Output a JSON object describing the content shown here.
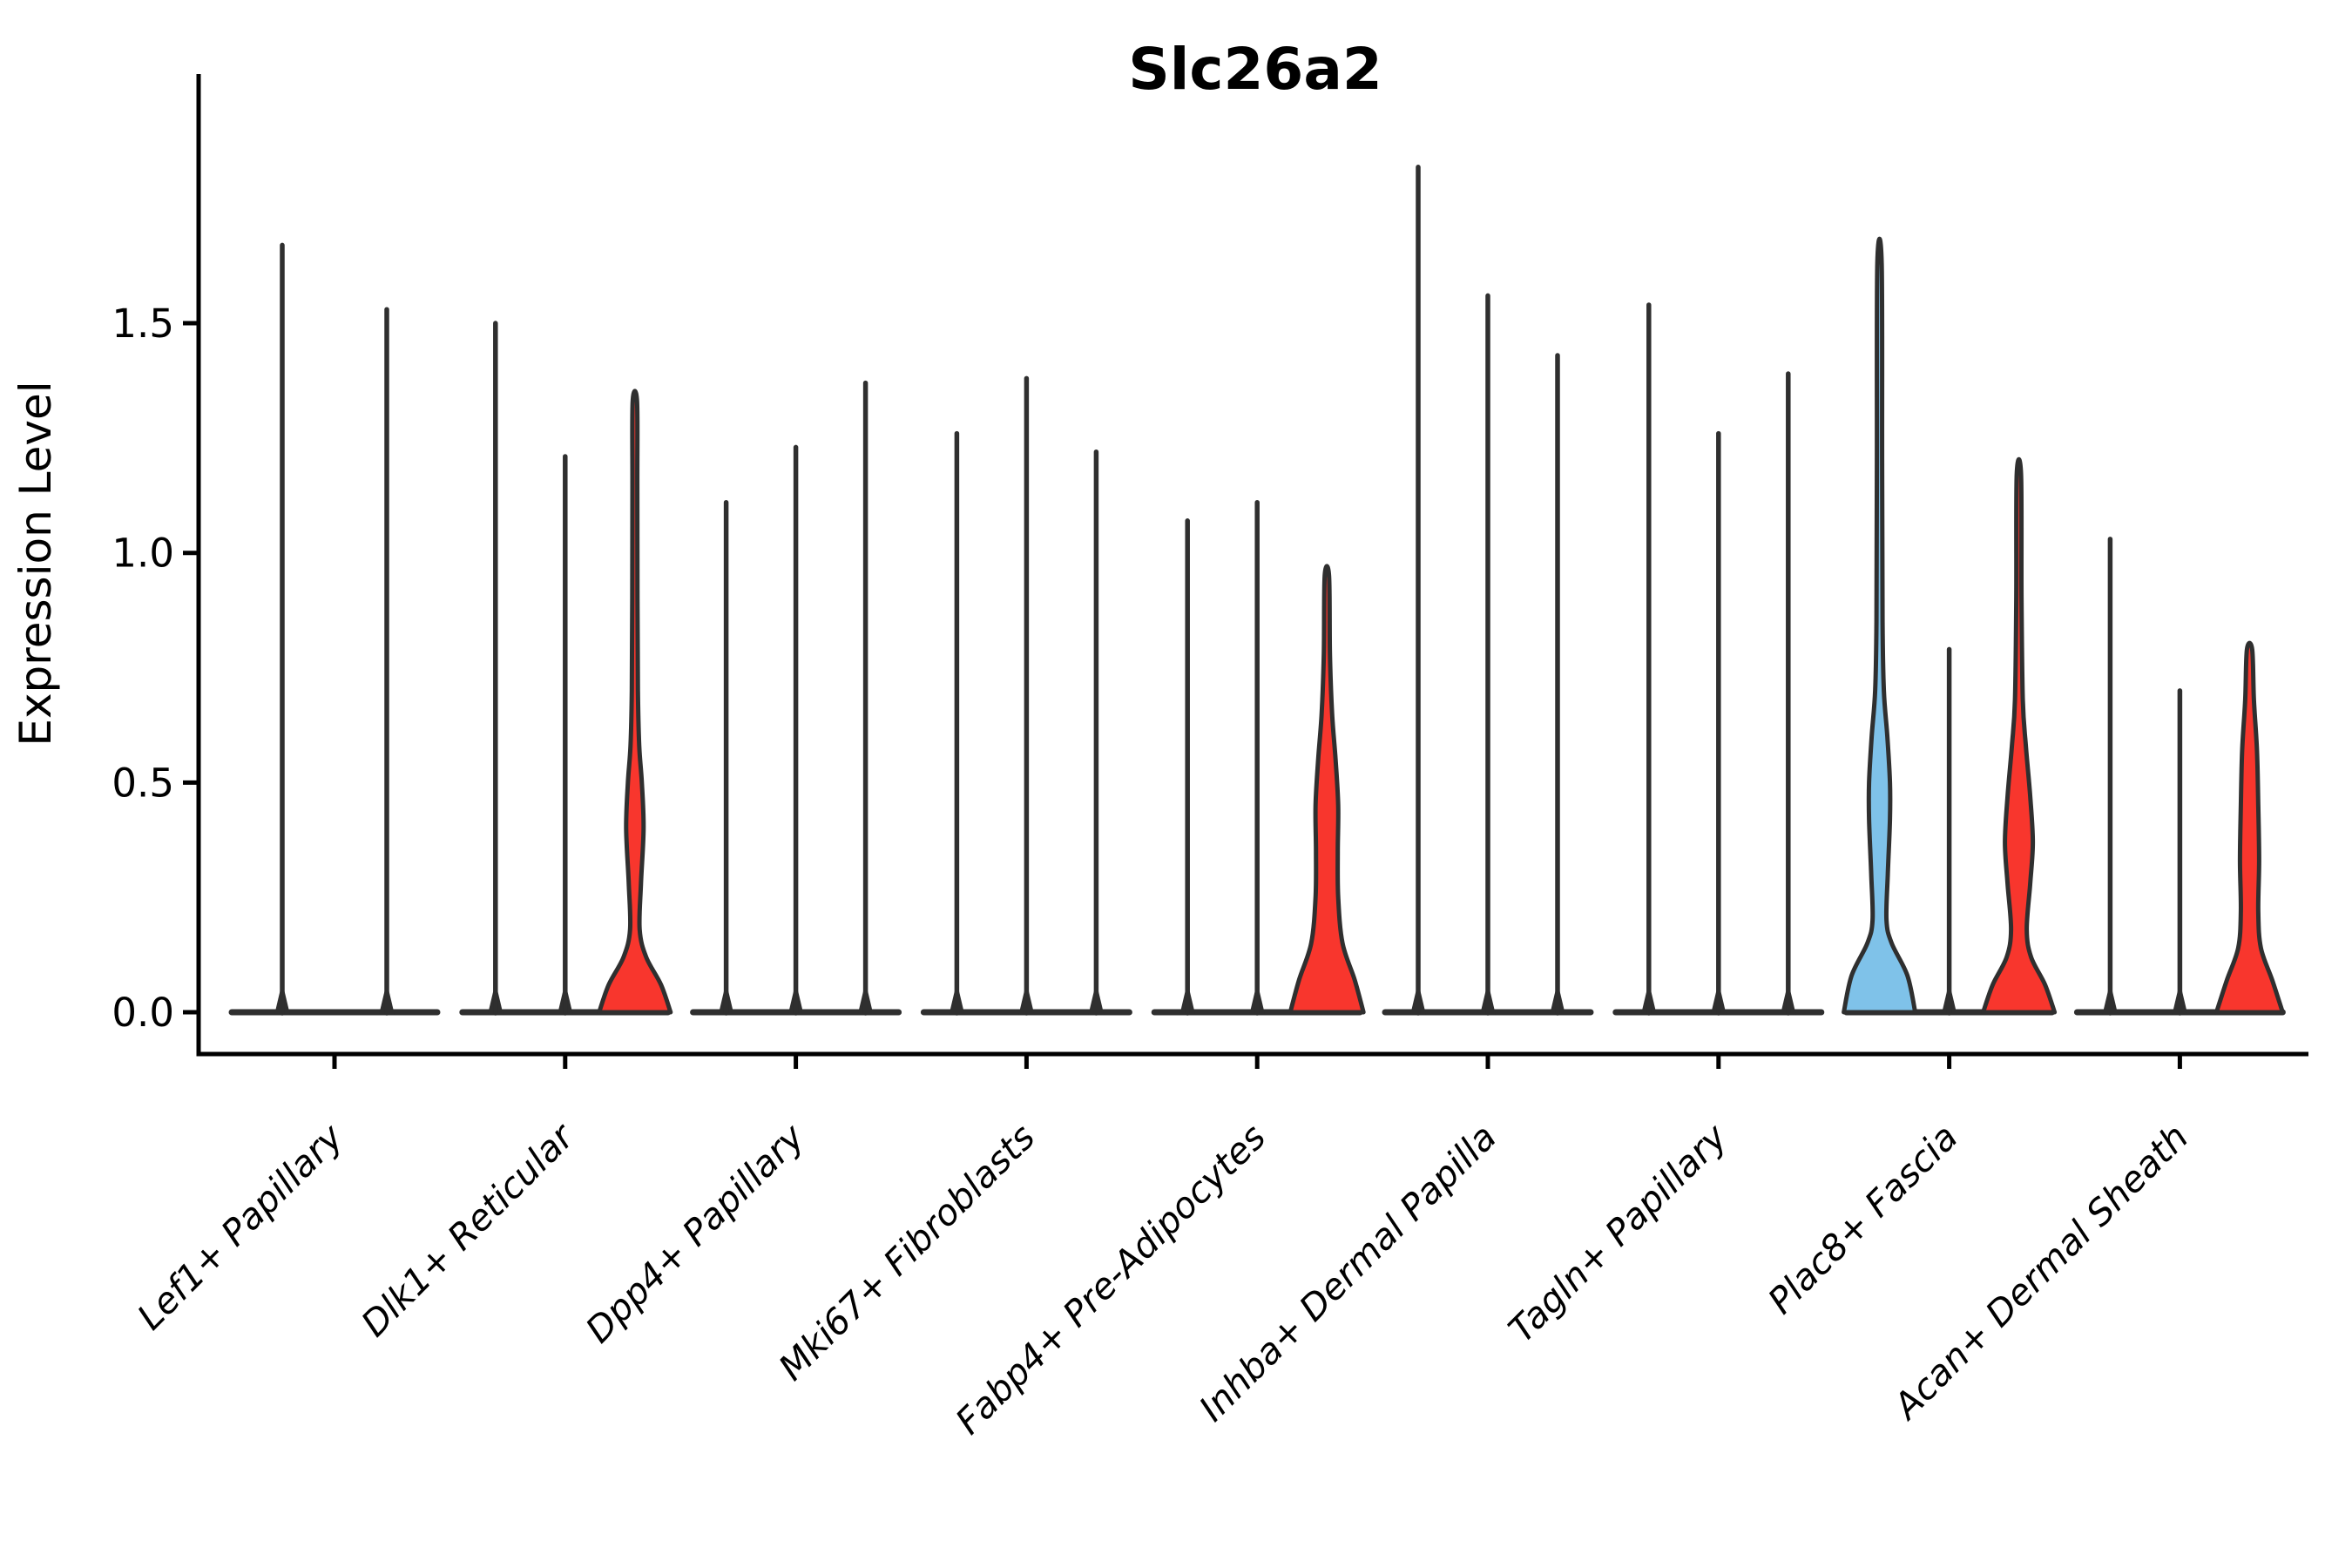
{
  "title": "Slc26a2",
  "y_axis": {
    "label": "Expression Level",
    "tick_labels": [
      "0.0",
      "0.5",
      "1.0",
      "1.5"
    ]
  },
  "colors": {
    "highlight_red": "#F8362D",
    "highlight_blue": "#7FC2E9",
    "violin_outline": "#2F2F2F",
    "axis_line": "#000000",
    "background": "#FFFFFF"
  },
  "chart_data": {
    "type": "violin",
    "title": "Slc26a2",
    "xlabel": "",
    "ylabel": "Expression Level",
    "ylim": [
      -0.09,
      2.04
    ],
    "yticks": [
      0.0,
      0.5,
      1.0,
      1.5
    ],
    "ytick_labels": [
      "0.0",
      "0.5",
      "1.0",
      "1.5"
    ],
    "grid": false,
    "legend": "none",
    "categories": [
      "Lef1+ Papillary",
      "Dlk1+ Reticular",
      "Dpp4+ Papillary",
      "Mki67+ Fibroblasts",
      "Fabp4+ Pre-Adipocytes",
      "Inhba+ Dermal Papilla",
      "Tagln+ Papillary",
      "Plac8+ Fascia",
      "Acan+ Dermal Sheath"
    ],
    "groups": [
      {
        "category": "Lef1+ Papillary",
        "violins": [
          {
            "max": 1.67,
            "fill": "none",
            "shape": "spike"
          },
          {
            "max": 1.53,
            "fill": "none",
            "shape": "spike"
          }
        ]
      },
      {
        "category": "Dlk1+ Reticular",
        "violins": [
          {
            "max": 1.5,
            "fill": "none",
            "shape": "spike"
          },
          {
            "max": 1.21,
            "fill": "none",
            "shape": "spike"
          },
          {
            "max": 1.33,
            "fill": "highlight_red",
            "shape": "body",
            "profile": [
              [
                0,
                41
              ],
              [
                0.06,
                30
              ],
              [
                0.12,
                13
              ],
              [
                0.18,
                5.5
              ],
              [
                0.28,
                7
              ],
              [
                0.4,
                10
              ],
              [
                0.5,
                8
              ],
              [
                0.58,
                5
              ],
              [
                0.7,
                3.5
              ],
              [
                0.9,
                3
              ],
              [
                1.15,
                2.8
              ],
              [
                1.33,
                2.5
              ]
            ]
          }
        ]
      },
      {
        "category": "Dpp4+ Papillary",
        "violins": [
          {
            "max": 1.11,
            "fill": "none",
            "shape": "spike"
          },
          {
            "max": 1.23,
            "fill": "none",
            "shape": "spike"
          },
          {
            "max": 1.37,
            "fill": "none",
            "shape": "spike"
          }
        ]
      },
      {
        "category": "Mki67+ Fibroblasts",
        "violins": [
          {
            "max": 1.26,
            "fill": "none",
            "shape": "spike"
          },
          {
            "max": 1.38,
            "fill": "none",
            "shape": "spike"
          },
          {
            "max": 1.22,
            "fill": "none",
            "shape": "spike"
          }
        ]
      },
      {
        "category": "Fabp4+ Pre-Adipocytes",
        "violins": [
          {
            "max": 1.07,
            "fill": "none",
            "shape": "spike"
          },
          {
            "max": 1.11,
            "fill": "none",
            "shape": "spike"
          },
          {
            "max": 0.95,
            "fill": "highlight_red",
            "shape": "body",
            "profile": [
              [
                0,
                42
              ],
              [
                0.07,
                32
              ],
              [
                0.15,
                18
              ],
              [
                0.25,
                13
              ],
              [
                0.35,
                12.5
              ],
              [
                0.45,
                13
              ],
              [
                0.55,
                10
              ],
              [
                0.65,
                6
              ],
              [
                0.78,
                3.5
              ],
              [
                0.95,
                2.5
              ]
            ]
          }
        ]
      },
      {
        "category": "Inhba+ Dermal Papilla",
        "violins": [
          {
            "max": 1.84,
            "fill": "none",
            "shape": "spike"
          },
          {
            "max": 1.56,
            "fill": "none",
            "shape": "spike"
          },
          {
            "max": 1.43,
            "fill": "none",
            "shape": "spike"
          }
        ]
      },
      {
        "category": "Tagln+ Papillary",
        "violins": [
          {
            "max": 1.54,
            "fill": "none",
            "shape": "spike"
          },
          {
            "max": 1.26,
            "fill": "none",
            "shape": "spike"
          },
          {
            "max": 1.39,
            "fill": "none",
            "shape": "spike"
          }
        ]
      },
      {
        "category": "Plac8+ Fascia",
        "violins": [
          {
            "max": 1.63,
            "fill": "highlight_blue",
            "shape": "body",
            "profile": [
              [
                0,
                41
              ],
              [
                0.08,
                32
              ],
              [
                0.15,
                14
              ],
              [
                0.2,
                8
              ],
              [
                0.3,
                9.5
              ],
              [
                0.42,
                12
              ],
              [
                0.5,
                12
              ],
              [
                0.6,
                9
              ],
              [
                0.7,
                5
              ],
              [
                0.85,
                3.5
              ],
              [
                1.2,
                3
              ],
              [
                1.63,
                2.5
              ]
            ]
          },
          {
            "max": 0.79,
            "fill": "none",
            "shape": "spike"
          },
          {
            "max": 1.17,
            "fill": "highlight_red",
            "shape": "body",
            "profile": [
              [
                0,
                41
              ],
              [
                0.06,
                30
              ],
              [
                0.12,
                14
              ],
              [
                0.18,
                9
              ],
              [
                0.28,
                13
              ],
              [
                0.37,
                16
              ],
              [
                0.47,
                13
              ],
              [
                0.58,
                8
              ],
              [
                0.68,
                4.5
              ],
              [
                0.9,
                3
              ],
              [
                1.17,
                2.5
              ]
            ]
          }
        ]
      },
      {
        "category": "Acan+ Dermal Sheath",
        "violins": [
          {
            "max": 1.03,
            "fill": "none",
            "shape": "spike"
          },
          {
            "max": 0.7,
            "fill": "none",
            "shape": "spike"
          },
          {
            "max": 0.79,
            "fill": "highlight_red",
            "shape": "body",
            "profile": [
              [
                0,
                38
              ],
              [
                0.07,
                26
              ],
              [
                0.14,
                13
              ],
              [
                0.22,
                10
              ],
              [
                0.33,
                11
              ],
              [
                0.45,
                10
              ],
              [
                0.57,
                8.5
              ],
              [
                0.68,
                5
              ],
              [
                0.79,
                3
              ]
            ]
          }
        ]
      }
    ]
  }
}
